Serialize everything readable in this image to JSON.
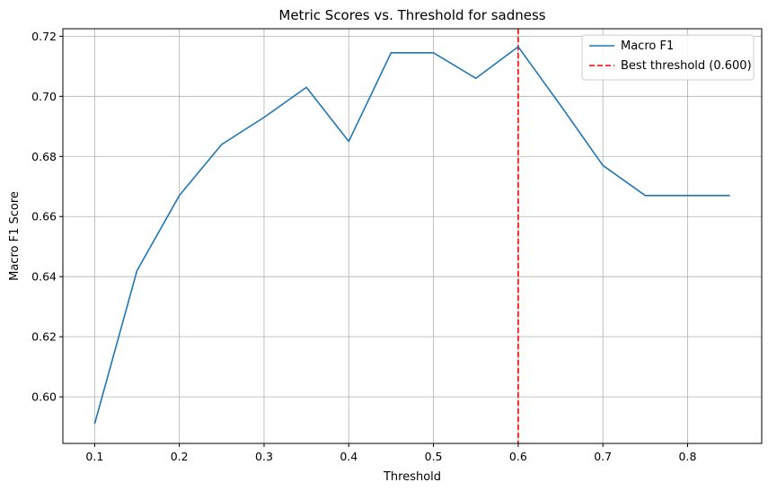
{
  "chart_data": {
    "type": "line",
    "title": "Metric Scores vs. Threshold for sadness",
    "xlabel": "Threshold",
    "ylabel": "Macro F1 Score",
    "xlim": [
      0.0625,
      0.8875
    ],
    "ylim": [
      0.5845,
      0.7225
    ],
    "x_ticks": [
      0.1,
      0.2,
      0.3,
      0.4,
      0.5,
      0.6,
      0.7,
      0.8
    ],
    "x_tick_labels": [
      "0.1",
      "0.2",
      "0.3",
      "0.4",
      "0.5",
      "0.6",
      "0.7",
      "0.8"
    ],
    "y_ticks": [
      0.6,
      0.62,
      0.64,
      0.66,
      0.68,
      0.7,
      0.72
    ],
    "y_tick_labels": [
      "0.60",
      "0.62",
      "0.64",
      "0.66",
      "0.68",
      "0.70",
      "0.72"
    ],
    "grid": true,
    "legend_position": "top-right",
    "series": [
      {
        "name": "Macro F1",
        "color": "#1f77b4",
        "x": [
          0.1,
          0.15,
          0.2,
          0.25,
          0.3,
          0.35,
          0.4,
          0.45,
          0.5,
          0.55,
          0.6,
          0.65,
          0.7,
          0.75,
          0.8,
          0.85
        ],
        "values": [
          0.591,
          0.642,
          0.667,
          0.684,
          0.693,
          0.703,
          0.685,
          0.7145,
          0.7145,
          0.706,
          0.7165,
          0.697,
          0.677,
          0.667,
          0.667,
          0.667
        ]
      }
    ],
    "annotations": [
      {
        "type": "vline",
        "x": 0.6,
        "label": "Best threshold (0.600)",
        "color": "#ff0000",
        "style": "dashed"
      }
    ]
  }
}
